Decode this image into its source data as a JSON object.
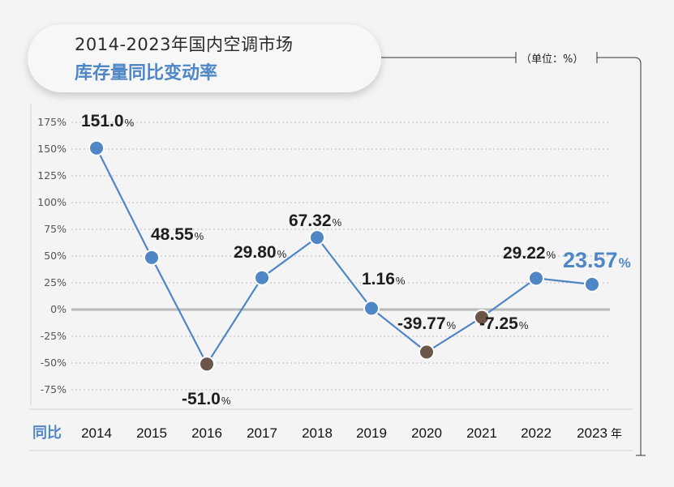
{
  "title": {
    "line1": "2014-2023年国内空调市场",
    "line2": "库存量同比变动率"
  },
  "unit_label": "（单位：%）",
  "x_row_label": "同比",
  "x_unit_suffix": "年",
  "colors": {
    "line": "#4f86c6",
    "point_positive": "#4f86c6",
    "point_negative": "#6b5549",
    "highlight_label": "#4f86c6",
    "label": "#1e1e1e",
    "axis_text": "#555555"
  },
  "chart_data": {
    "type": "line",
    "title": "2014-2023年国内空调市场库存量同比变动率",
    "xlabel": "",
    "ylabel": "",
    "ylim": [
      -75,
      175
    ],
    "y_ticks": [
      "175%",
      "150%",
      "125%",
      "100%",
      "75%",
      "50%",
      "25%",
      "0%",
      "-25%",
      "-50%",
      "-75%"
    ],
    "y_tick_values": [
      175,
      150,
      125,
      100,
      75,
      50,
      25,
      0,
      -25,
      -50,
      -75
    ],
    "grid": true,
    "categories": [
      "2014",
      "2015",
      "2016",
      "2017",
      "2018",
      "2019",
      "2020",
      "2021",
      "2022",
      "2023"
    ],
    "values": [
      151.0,
      48.55,
      -51.0,
      29.8,
      67.32,
      1.16,
      -39.77,
      -7.25,
      29.22,
      23.57
    ],
    "labels": [
      {
        "num": "151.0",
        "pct": "%"
      },
      {
        "num": "48.55",
        "pct": "%"
      },
      {
        "num": "-51.0",
        "pct": "%"
      },
      {
        "num": "29.80",
        "pct": "%"
      },
      {
        "num": "67.32",
        "pct": "%"
      },
      {
        "num": "1.16",
        "pct": "%"
      },
      {
        "num": "-39.77",
        "pct": "%"
      },
      {
        "num": "-7.25",
        "pct": "%"
      },
      {
        "num": "29.22",
        "pct": "%"
      },
      {
        "num": "23.57",
        "pct": "%"
      }
    ],
    "highlight_index": 9
  }
}
